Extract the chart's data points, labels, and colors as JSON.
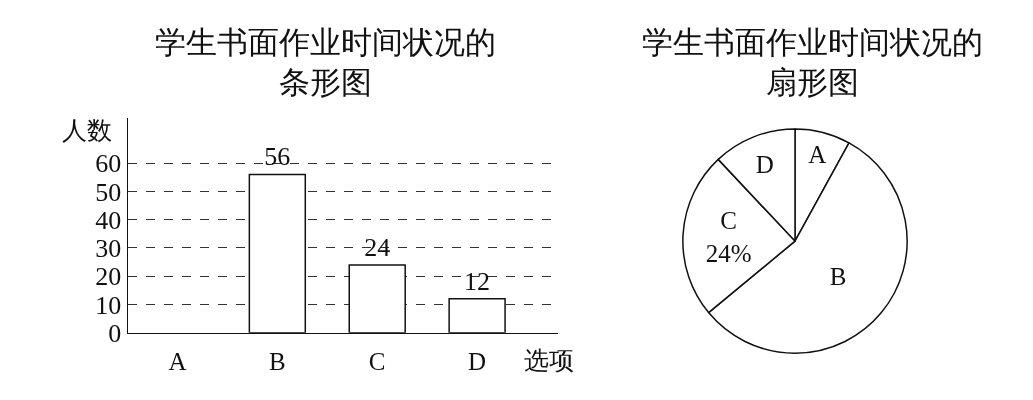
{
  "chart_data": [
    {
      "type": "bar",
      "title": "学生书面作业时间状况的条形图",
      "xlabel": "选项",
      "ylabel": "人数",
      "categories": [
        "A",
        "B",
        "C",
        "D"
      ],
      "values": [
        null,
        56,
        24,
        12
      ],
      "color": "#ffffff",
      "ylim": [
        0,
        76
      ],
      "yticks": [
        0,
        10,
        20,
        30,
        40,
        50,
        60
      ],
      "grid": "y",
      "data_labels": true
    },
    {
      "type": "pie",
      "title": "学生书面作业时间状况的扇形图",
      "categories": [
        "A",
        "B",
        "C",
        "D"
      ],
      "values": [
        8,
        56,
        24,
        12
      ],
      "colors": [
        "#ffffff",
        "#ffffff",
        "#ffffff",
        "#ffffff"
      ],
      "value_labels": [
        null,
        null,
        "24%",
        null
      ]
    }
  ]
}
